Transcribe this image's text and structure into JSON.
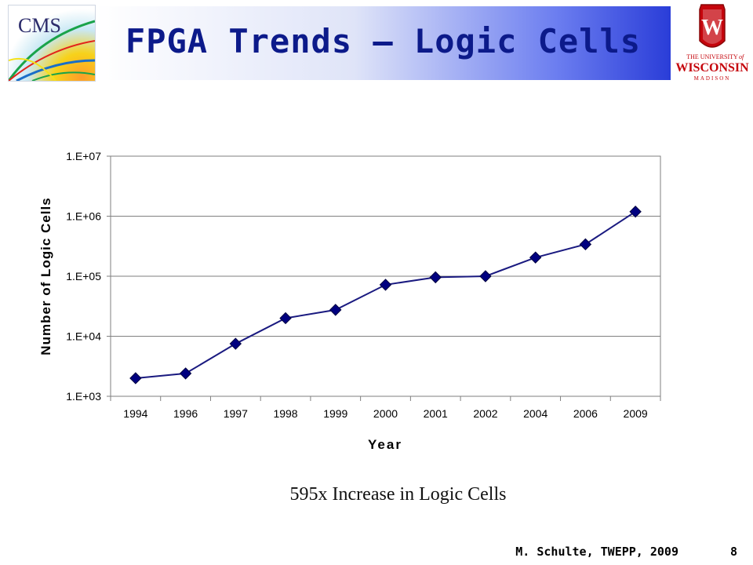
{
  "slide": {
    "title": "FPGA Trends – Logic Cells",
    "caption": "595x Increase in Logic Cells",
    "footer": "M. Schulte, TWEPP, 2009",
    "page_number": "8",
    "logos": {
      "left_text": "CMS",
      "right_top": "THE UNIVERSITY",
      "right_of": "of",
      "right_main": "WISCONSIN",
      "right_sub": "MADISON",
      "right_crest_letter": "W"
    }
  },
  "colors": {
    "title_text": "#0c1a8a",
    "series": "#1a1a80",
    "marker": "#000080",
    "uw_red": "#c5050c"
  },
  "chart_data": {
    "type": "line",
    "xlabel": "Year",
    "ylabel": "Number of Logic Cells",
    "y_scale": "log10",
    "ylim": [
      1000,
      10000000
    ],
    "y_tick_labels": [
      "1.E+03",
      "1.E+04",
      "1.E+05",
      "1.E+06",
      "1.E+07"
    ],
    "grid": "horizontal major",
    "legend": "none",
    "categories": [
      "1994",
      "1996",
      "1997",
      "1998",
      "1999",
      "2000",
      "2001",
      "2002",
      "2004",
      "2006",
      "2009"
    ],
    "series": [
      {
        "values": [
          2000,
          2400,
          7500,
          20000,
          27500,
          72000,
          96000,
          100000,
          205000,
          340000,
          1190000
        ]
      }
    ]
  }
}
